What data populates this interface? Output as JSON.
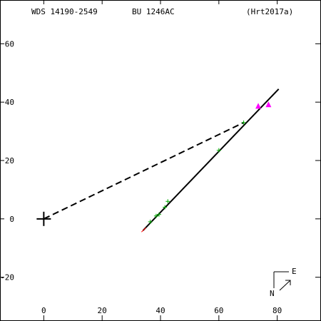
{
  "header": {
    "left": "WDS 14190-2549",
    "middle": "BU 1246AC",
    "right": "(Hrt2017a)"
  },
  "compass": {
    "east": "E",
    "north": "N"
  },
  "chart_data": {
    "type": "scatter",
    "xlim": [
      -15,
      95
    ],
    "ylim": [
      -35,
      75
    ],
    "xticks": [
      0,
      20,
      40,
      60,
      80
    ],
    "yticks": [
      -20,
      0,
      20,
      40,
      60
    ],
    "xtick_labels": [
      "0",
      "20",
      "40",
      "60",
      "80"
    ],
    "ytick_labels": [
      "-20",
      "0",
      "20",
      "40",
      "60"
    ],
    "primary_star": [
      0,
      0
    ],
    "orbit_line": {
      "from": [
        34,
        -4
      ],
      "to": [
        80.5,
        44.5
      ],
      "color": "#000000"
    },
    "orbit_start_segment": {
      "from": [
        33.5,
        -4.5
      ],
      "to": [
        35,
        -3
      ],
      "color": "#ff0000"
    },
    "dashed_line": {
      "from": [
        0,
        0
      ],
      "to": [
        68.5,
        33
      ],
      "color": "#000000"
    },
    "series": [
      {
        "marker": "plus",
        "color": "#00aa00",
        "points": [
          [
            36.5,
            -1
          ],
          [
            38.5,
            1
          ],
          [
            39.5,
            1.5
          ],
          [
            41.5,
            4
          ],
          [
            42.5,
            6
          ],
          [
            60,
            23.5
          ],
          [
            68.5,
            33
          ]
        ]
      },
      {
        "marker": "triangle",
        "color": "#ff00ff",
        "points": [
          [
            73.5,
            38.5
          ],
          [
            77,
            39
          ]
        ]
      }
    ]
  }
}
